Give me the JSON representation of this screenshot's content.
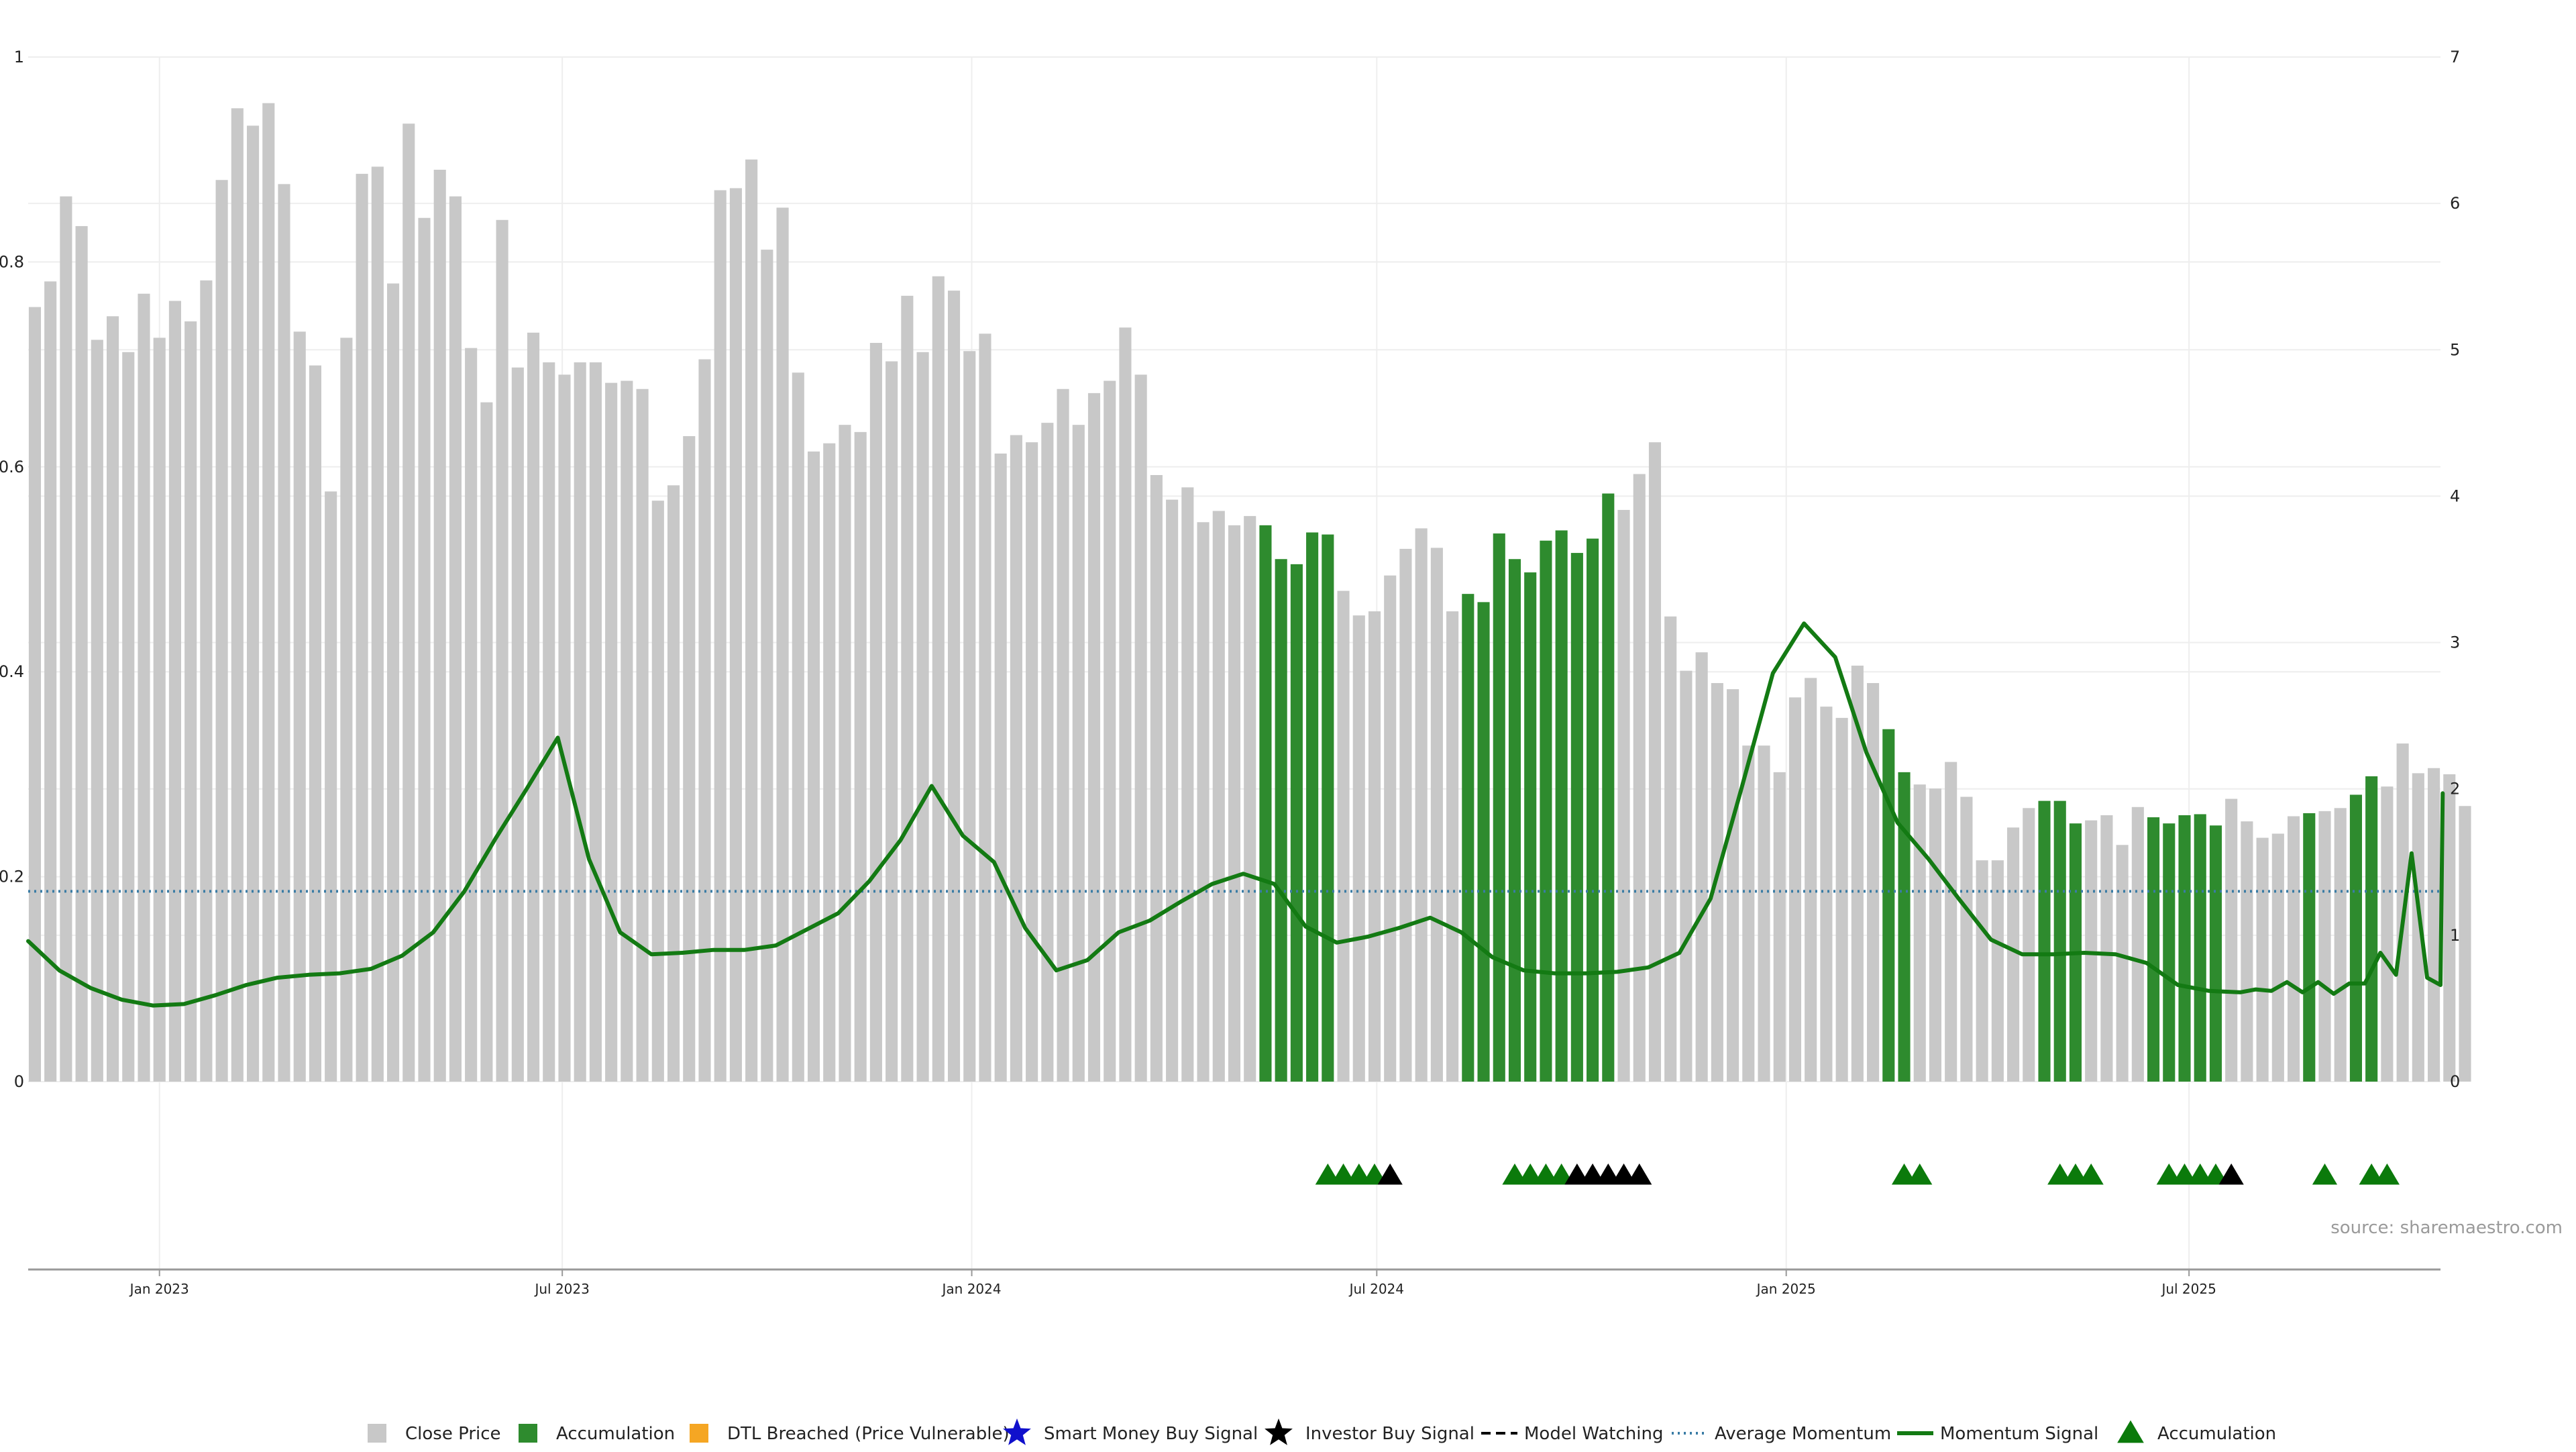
{
  "colors": {
    "close_price": "#c8c8c8",
    "accumulation": "#2e8b2e",
    "dtl_breached": "#f5a623",
    "smart_money": "#1010cc",
    "investor_buy": "#000000",
    "model_watching": "#000000",
    "average_momentum": "#3a7ca5",
    "momentum_signal": "#137a13",
    "accumulation_marker": "#0b7a0b",
    "axis": "#999999",
    "grid": "#eeeeee"
  },
  "source": "source: sharemaestro.com",
  "chart_data": {
    "type": "bar",
    "x_type": "time",
    "x_range": [
      "2022-11-03",
      "2025-10-22"
    ],
    "x_ticks": [
      {
        "date": "2023-01-01",
        "label": "Jan 2023"
      },
      {
        "date": "2023-07-01",
        "label": "Jul 2023"
      },
      {
        "date": "2024-01-01",
        "label": "Jan 2024"
      },
      {
        "date": "2024-07-01",
        "label": "Jul 2024"
      },
      {
        "date": "2025-01-01",
        "label": "Jan 2025"
      },
      {
        "date": "2025-07-01",
        "label": "Jul 2025"
      }
    ],
    "y_left": {
      "range": [
        0,
        1
      ],
      "ticks": [
        "0",
        "0.2",
        "0.4",
        "0.6",
        "0.8",
        "1"
      ]
    },
    "y_right": {
      "range": [
        0,
        7
      ],
      "ticks": [
        "0",
        "1",
        "2",
        "3",
        "4",
        "5",
        "6",
        "7"
      ]
    },
    "grid": true,
    "legend_position": "bottom",
    "legend": [
      {
        "key": "close_price",
        "label": "Close Price",
        "symbol": "square"
      },
      {
        "key": "accumulation",
        "label": "Accumulation",
        "symbol": "square"
      },
      {
        "key": "dtl_breached",
        "label": "DTL Breached (Price Vulnerable)",
        "symbol": "square"
      },
      {
        "key": "smart_money",
        "label": "Smart Money Buy Signal",
        "symbol": "star"
      },
      {
        "key": "investor_buy",
        "label": "Investor Buy Signal",
        "symbol": "star"
      },
      {
        "key": "model_watching",
        "label": "Model Watching",
        "symbol": "dash"
      },
      {
        "key": "average_momentum",
        "label": "Average Momentum",
        "symbol": "dotted"
      },
      {
        "key": "momentum_signal",
        "label": "Momentum Signal",
        "symbol": "line"
      },
      {
        "key": "accumulation_marker",
        "label": "Accumulation",
        "symbol": "triangle"
      }
    ],
    "bars": {
      "start_date": "2022-11-06",
      "interval_days": 7,
      "close_price": [
        0.756,
        0.781,
        0.864,
        0.835,
        0.724,
        0.747,
        0.712,
        0.769,
        0.726,
        0.762,
        0.742,
        0.782,
        0.88,
        0.95,
        0.933,
        0.955,
        0.876,
        0.732,
        0.699,
        0.576,
        0.726,
        0.886,
        0.893,
        0.779,
        0.935,
        0.843,
        0.89,
        0.864,
        0.716,
        0.663,
        0.841,
        0.697,
        0.731,
        0.702,
        0.69,
        0.702,
        0.702,
        0.682,
        0.684,
        0.676,
        0.567,
        0.582,
        0.63,
        0.705,
        0.87,
        0.872,
        0.9,
        0.812,
        0.853,
        0.692,
        0.615,
        0.623,
        0.641,
        0.634,
        0.721,
        0.703,
        0.767,
        0.712,
        0.786,
        0.772,
        0.713,
        0.73,
        0.613,
        0.631,
        0.624,
        0.643,
        0.676,
        0.641,
        0.672,
        0.684,
        0.736,
        0.69,
        0.592,
        0.568,
        0.58,
        0.546,
        0.557,
        0.543,
        0.552,
        0.543,
        0.51,
        0.505,
        0.536,
        0.534,
        0.479,
        0.455,
        0.459,
        0.494,
        0.52,
        0.54,
        0.521,
        0.459,
        0.476,
        0.468,
        0.535,
        0.51,
        0.497,
        0.528,
        0.538,
        0.516,
        0.53,
        0.574,
        0.558,
        0.593,
        0.624,
        0.454,
        0.401,
        0.419,
        0.389,
        0.383,
        0.328,
        0.328,
        0.302,
        0.375,
        0.394,
        0.366,
        0.355,
        0.406,
        0.389,
        0.344,
        0.302,
        0.29,
        0.286,
        0.312,
        0.278,
        0.216,
        0.216,
        0.248,
        0.267,
        0.274,
        0.274,
        0.252,
        0.255,
        0.26,
        0.231,
        0.268,
        0.258,
        0.252,
        0.26,
        0.261,
        0.25,
        0.276,
        0.254,
        0.238,
        0.242,
        0.259,
        0.262,
        0.264,
        0.267,
        0.28,
        0.298,
        0.288,
        0.33,
        0.301,
        0.306,
        0.3,
        0.269
      ],
      "accumulation_ranges": [
        [
          79,
          83
        ],
        [
          92,
          101
        ],
        [
          119,
          120
        ],
        [
          129,
          131
        ],
        [
          136,
          140
        ],
        [
          146,
          146
        ],
        [
          149,
          150
        ]
      ]
    },
    "series": [
      {
        "name": "Average Momentum",
        "key": "average_momentum",
        "axis": "right",
        "style": "dotted",
        "points": [
          [
            "2022-11-03",
            1.3
          ],
          [
            "2025-10-22",
            1.3
          ]
        ]
      },
      {
        "name": "Momentum Signal",
        "key": "momentum_signal",
        "axis": "right",
        "style": "solid",
        "points": [
          [
            "2022-11-03",
            0.96
          ],
          [
            "2022-11-17",
            0.76
          ],
          [
            "2022-12-01",
            0.64
          ],
          [
            "2022-12-15",
            0.56
          ],
          [
            "2022-12-29",
            0.52
          ],
          [
            "2023-01-12",
            0.53
          ],
          [
            "2023-01-26",
            0.59
          ],
          [
            "2023-02-09",
            0.66
          ],
          [
            "2023-02-23",
            0.71
          ],
          [
            "2023-03-09",
            0.73
          ],
          [
            "2023-03-23",
            0.74
          ],
          [
            "2023-04-06",
            0.77
          ],
          [
            "2023-04-20",
            0.86
          ],
          [
            "2023-05-04",
            1.02
          ],
          [
            "2023-05-18",
            1.3
          ],
          [
            "2023-06-01",
            1.66
          ],
          [
            "2023-06-15",
            2.0
          ],
          [
            "2023-06-29",
            2.35
          ],
          [
            "2023-07-13",
            1.52
          ],
          [
            "2023-07-27",
            1.02
          ],
          [
            "2023-08-10",
            0.87
          ],
          [
            "2023-08-24",
            0.88
          ],
          [
            "2023-09-07",
            0.9
          ],
          [
            "2023-09-21",
            0.9
          ],
          [
            "2023-10-05",
            0.93
          ],
          [
            "2023-10-19",
            1.04
          ],
          [
            "2023-11-02",
            1.15
          ],
          [
            "2023-11-16",
            1.37
          ],
          [
            "2023-11-30",
            1.65
          ],
          [
            "2023-12-14",
            2.02
          ],
          [
            "2023-12-28",
            1.68
          ],
          [
            "2024-01-11",
            1.5
          ],
          [
            "2024-01-25",
            1.05
          ],
          [
            "2024-02-08",
            0.76
          ],
          [
            "2024-02-22",
            0.83
          ],
          [
            "2024-03-07",
            1.02
          ],
          [
            "2024-03-21",
            1.1
          ],
          [
            "2024-04-04",
            1.23
          ],
          [
            "2024-04-18",
            1.35
          ],
          [
            "2024-05-02",
            1.42
          ],
          [
            "2024-05-16",
            1.35
          ],
          [
            "2024-05-30",
            1.06
          ],
          [
            "2024-06-13",
            0.95
          ],
          [
            "2024-06-27",
            0.99
          ],
          [
            "2024-07-11",
            1.05
          ],
          [
            "2024-07-25",
            1.12
          ],
          [
            "2024-08-08",
            1.02
          ],
          [
            "2024-08-22",
            0.85
          ],
          [
            "2024-09-05",
            0.76
          ],
          [
            "2024-09-19",
            0.74
          ],
          [
            "2024-10-03",
            0.74
          ],
          [
            "2024-10-17",
            0.75
          ],
          [
            "2024-10-31",
            0.78
          ],
          [
            "2024-11-14",
            0.88
          ],
          [
            "2024-11-28",
            1.25
          ],
          [
            "2024-12-12",
            2.01
          ],
          [
            "2024-12-26",
            2.79
          ],
          [
            "2025-01-09",
            3.13
          ],
          [
            "2025-01-23",
            2.9
          ],
          [
            "2025-02-06",
            2.25
          ],
          [
            "2025-02-20",
            1.77
          ],
          [
            "2025-03-06",
            1.52
          ],
          [
            "2025-03-20",
            1.24
          ],
          [
            "2025-04-03",
            0.97
          ],
          [
            "2025-04-17",
            0.87
          ],
          [
            "2025-05-01",
            0.87
          ],
          [
            "2025-05-15",
            0.88
          ],
          [
            "2025-05-29",
            0.87
          ],
          [
            "2025-06-12",
            0.81
          ],
          [
            "2025-06-26",
            0.66
          ],
          [
            "2025-07-10",
            0.62
          ],
          [
            "2025-07-24",
            0.61
          ],
          [
            "2025-08-07",
            0.62
          ],
          [
            "2025-08-21",
            0.61
          ],
          [
            "2025-09-04",
            0.6
          ],
          [
            "2025-09-18",
            0.67
          ],
          [
            "2025-10-02",
            0.73
          ],
          [
            "2025-10-16",
            0.71
          ],
          [
            "2025-10-22",
            0.66
          ],
          [
            "2025-07-31",
            0.63
          ],
          [
            "2025-08-14",
            0.68
          ],
          [
            "2025-08-28",
            0.68
          ],
          [
            "2025-09-11",
            0.67
          ],
          [
            "2025-09-25",
            0.88
          ],
          [
            "2025-10-09",
            1.56
          ],
          [
            "2025-10-23",
            1.97
          ]
        ]
      }
    ],
    "markers": [
      {
        "type": "accumulation",
        "dates": [
          "2024-06-09",
          "2024-06-16",
          "2024-06-23",
          "2024-06-30",
          "2024-09-01",
          "2024-09-08",
          "2024-09-15",
          "2024-09-22",
          "2025-02-23",
          "2025-03-02",
          "2025-05-04",
          "2025-05-11",
          "2025-05-18",
          "2025-06-22",
          "2025-06-29",
          "2025-07-06",
          "2025-07-13",
          "2025-08-31",
          "2025-09-21",
          "2025-09-28"
        ]
      },
      {
        "type": "investor_buy",
        "dates": [
          "2024-07-07",
          "2024-09-29",
          "2024-10-06",
          "2024-10-13",
          "2024-10-20",
          "2024-10-27",
          "2025-07-20"
        ]
      }
    ]
  }
}
